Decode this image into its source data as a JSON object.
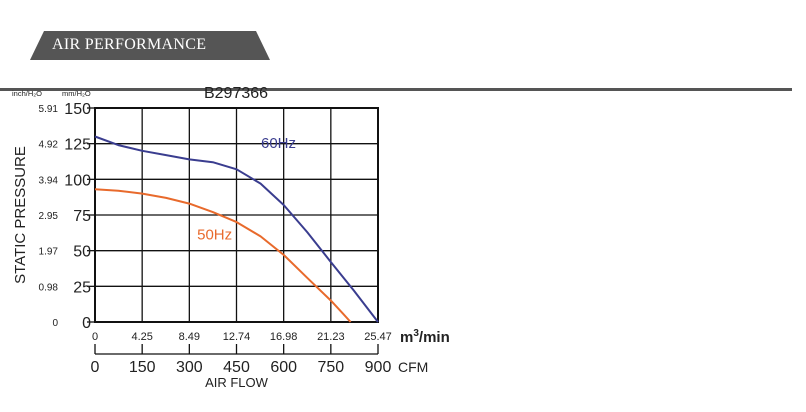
{
  "section": {
    "title": "AIR PERFORMANCE"
  },
  "colors": {
    "tab": "#555555",
    "grid": "#111111",
    "hz60": "#3a3d8f",
    "hz50": "#e86a2c",
    "text": "#222222"
  },
  "chart_data": {
    "type": "line",
    "title": "B297366",
    "ylabel": "STATIC PRESSURE",
    "xlabel": "AIR FLOW",
    "ylim": [
      0,
      150
    ],
    "xlim_m3min": [
      0,
      25.47
    ],
    "y_unit_left": "inch/H₂O",
    "y_unit_right": "mm/H₂O",
    "y_ticks_mm": [
      "150",
      "125",
      "100",
      "75",
      "50",
      "25",
      "0"
    ],
    "y_ticks_inch": [
      "5.91",
      "4.92",
      "3.94",
      "2.95",
      "1.97",
      "0.98",
      "0"
    ],
    "x_ticks_m3min": [
      "0",
      "4.25",
      "8.49",
      "12.74",
      "16.98",
      "21.23",
      "25.47"
    ],
    "x_unit_m3min_base": "m",
    "x_unit_m3min_exp": "3",
    "x_unit_m3min_rest": "/min",
    "x_ticks_cfm": [
      "0",
      "150",
      "300",
      "450",
      "600",
      "750",
      "900"
    ],
    "x_unit_cfm": "CFM",
    "series": [
      {
        "name": "60Hz",
        "color": "#3a3d8f",
        "x": [
          0,
          2.1,
          4.25,
          6.4,
          8.49,
          10.6,
          12.74,
          14.9,
          16.98,
          19.1,
          21.23,
          23.3,
          25.47
        ],
        "y": [
          130,
          124,
          120,
          117,
          114,
          112,
          107,
          97,
          82,
          63,
          42,
          22,
          0
        ]
      },
      {
        "name": "50Hz",
        "color": "#e86a2c",
        "x": [
          0,
          2.1,
          4.25,
          6.4,
          8.49,
          10.6,
          12.74,
          14.9,
          16.98,
          19.1,
          21.23,
          22.3,
          23.0
        ],
        "y": [
          93,
          92,
          90,
          87,
          83,
          77,
          70,
          60,
          47,
          31,
          15,
          6,
          0
        ]
      }
    ]
  }
}
